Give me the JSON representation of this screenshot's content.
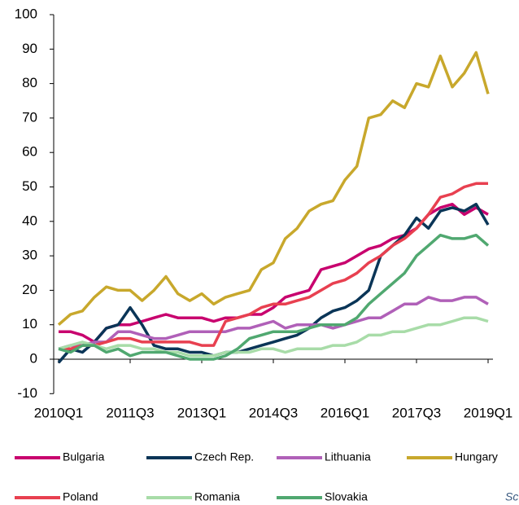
{
  "chart_data": {
    "type": "line",
    "categories": [
      "2010Q1",
      null,
      null,
      null,
      null,
      null,
      "2011Q3",
      null,
      null,
      null,
      null,
      null,
      "2013Q1",
      null,
      null,
      null,
      null,
      null,
      "2014Q3",
      null,
      null,
      null,
      null,
      null,
      "2016Q1",
      null,
      null,
      null,
      null,
      null,
      "2017Q3",
      null,
      null,
      null,
      null,
      null,
      "2019Q1"
    ],
    "ylim": [
      -10,
      100
    ],
    "yticks": [
      -10,
      0,
      10,
      20,
      30,
      40,
      50,
      60,
      70,
      80,
      90,
      100
    ],
    "series": [
      {
        "name": "Bulgaria",
        "color": "#c8006e",
        "values": [
          8,
          8,
          7,
          5,
          9,
          10,
          10,
          11,
          12,
          13,
          12,
          12,
          12,
          11,
          12,
          12,
          13,
          13,
          15,
          18,
          19,
          20,
          26,
          27,
          28,
          30,
          32,
          33,
          35,
          36,
          38,
          42,
          44,
          45,
          42,
          44,
          42
        ]
      },
      {
        "name": "Czech Rep.",
        "color": "#0a3557",
        "values": [
          -1,
          3,
          2,
          5,
          9,
          10,
          15,
          10,
          4,
          3,
          3,
          2,
          2,
          1,
          2,
          2,
          3,
          4,
          5,
          6,
          7,
          9,
          12,
          14,
          15,
          17,
          20,
          30,
          33,
          36,
          41,
          38,
          43,
          44,
          43,
          45,
          39
        ]
      },
      {
        "name": "Lithuania",
        "color": "#b060b8",
        "values": [
          3,
          4,
          4,
          5,
          5,
          8,
          8,
          7,
          6,
          6,
          7,
          8,
          8,
          8,
          8,
          9,
          9,
          10,
          11,
          9,
          10,
          10,
          10,
          9,
          10,
          11,
          12,
          12,
          14,
          16,
          16,
          18,
          17,
          17,
          18,
          18,
          16
        ]
      },
      {
        "name": "Hungary",
        "color": "#c8a82c",
        "values": [
          10,
          13,
          14,
          18,
          21,
          20,
          20,
          17,
          20,
          24,
          19,
          17,
          19,
          16,
          18,
          19,
          20,
          26,
          28,
          35,
          38,
          43,
          45,
          46,
          52,
          56,
          70,
          71,
          75,
          73,
          80,
          79,
          88,
          79,
          83,
          89,
          77
        ]
      },
      {
        "name": "Poland",
        "color": "#e84050",
        "values": [
          3,
          3,
          4,
          4,
          5,
          6,
          6,
          5,
          5,
          5,
          5,
          5,
          4,
          4,
          11,
          12,
          13,
          15,
          16,
          16,
          17,
          18,
          20,
          22,
          23,
          25,
          28,
          30,
          33,
          35,
          38,
          42,
          47,
          48,
          50,
          51,
          51
        ]
      },
      {
        "name": "Romania",
        "color": "#a8dca8",
        "values": [
          3,
          4,
          5,
          4,
          3,
          4,
          4,
          3,
          3,
          2,
          2,
          1,
          1,
          1,
          2,
          2,
          2,
          3,
          3,
          2,
          3,
          3,
          3,
          4,
          4,
          5,
          7,
          7,
          8,
          8,
          9,
          10,
          10,
          11,
          12,
          12,
          11
        ]
      },
      {
        "name": "Slovakia",
        "color": "#50a870",
        "values": [
          3,
          2,
          4,
          4,
          2,
          3,
          1,
          2,
          2,
          2,
          1,
          0,
          0,
          0,
          1,
          3,
          6,
          7,
          8,
          8,
          8,
          9,
          10,
          10,
          10,
          12,
          16,
          19,
          22,
          25,
          30,
          33,
          36,
          35,
          35,
          36,
          33
        ]
      }
    ],
    "source": "Sc"
  }
}
